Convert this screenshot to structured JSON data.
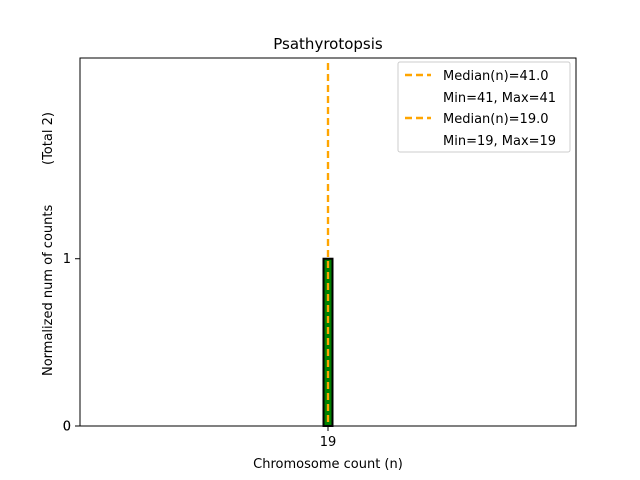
{
  "chart_data": {
    "type": "bar",
    "title": "Psathyrotopsis",
    "xlabel": "Chromosome count (n)",
    "ylabel": "Normalized num of counts",
    "ylabel_total": "(Total 2)",
    "categories": [
      "19"
    ],
    "x_ticks": [
      "19"
    ],
    "y_ticks": [
      "0",
      "0",
      "1"
    ],
    "series": [
      {
        "values": [
          1.0
        ],
        "fill_color": "#008000",
        "edge_color": "#000000"
      }
    ],
    "ylim": [
      0,
      2.2
    ],
    "medians": [
      {
        "value": 41.0,
        "label": "Median(n)=41.0",
        "range_text": "Min=41, Max=41",
        "color": "#FFA500",
        "style": "dashed"
      },
      {
        "value": 19.0,
        "label": "Median(n)=19.0",
        "range_text": "Min=19, Max=19",
        "color": "#FFA500",
        "style": "dashed"
      }
    ],
    "legend_placement": "top-right",
    "grid": false
  }
}
